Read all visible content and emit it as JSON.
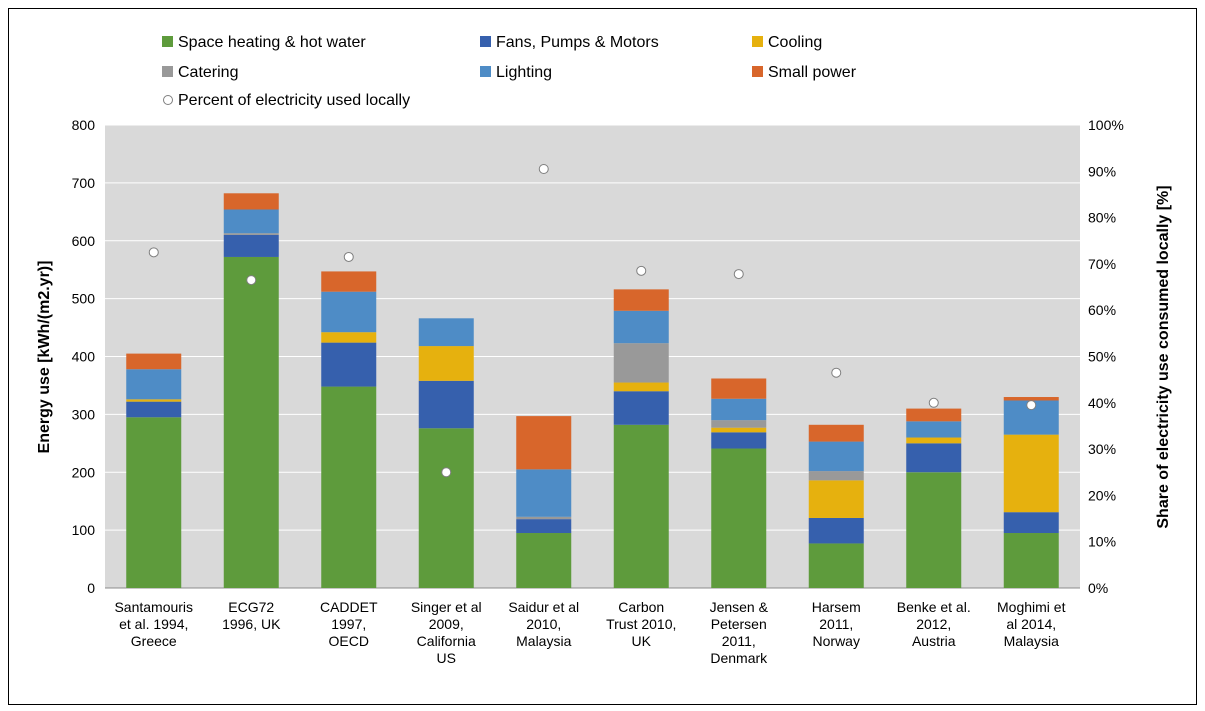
{
  "chart_data": {
    "type": "bar",
    "stacked": true,
    "categories": [
      [
        "Santamouris",
        "et al. 1994,",
        "Greece"
      ],
      [
        "ECG72",
        "1996, UK"
      ],
      [
        "CADDET",
        "1997,",
        "OECD"
      ],
      [
        "Singer et al",
        "2009,",
        "California",
        "US"
      ],
      [
        "Saidur et al",
        "2010,",
        "Malaysia"
      ],
      [
        "Carbon",
        "Trust 2010,",
        "UK"
      ],
      [
        "Jensen &",
        "Petersen",
        "2011,",
        "Denmark"
      ],
      [
        "Harsem",
        "2011,",
        "Norway"
      ],
      [
        "Benke et al.",
        "2012,",
        "Austria"
      ],
      [
        "Moghimi et",
        "al 2014,",
        "Malaysia"
      ]
    ],
    "series": [
      {
        "name": "Space heating & hot water",
        "color": "#5e9b3c",
        "values": [
          295,
          572,
          348,
          276,
          95,
          282,
          241,
          77,
          200,
          95
        ]
      },
      {
        "name": "Fans, Pumps & Motors",
        "color": "#3660ad",
        "values": [
          27,
          38,
          76,
          82,
          24,
          58,
          28,
          44,
          50,
          36
        ]
      },
      {
        "name": "Cooling",
        "color": "#e6b10e",
        "values": [
          4,
          0,
          18,
          60,
          0,
          15,
          8,
          65,
          10,
          134
        ]
      },
      {
        "name": "Catering",
        "color": "#999999",
        "values": [
          0,
          3,
          0,
          0,
          4,
          68,
          13,
          16,
          0,
          0
        ]
      },
      {
        "name": "Lighting",
        "color": "#4e8cc6",
        "values": [
          52,
          41,
          70,
          48,
          82,
          56,
          37,
          51,
          28,
          59
        ]
      },
      {
        "name": "Small power",
        "color": "#d8662b",
        "values": [
          27,
          28,
          35,
          0,
          92,
          37,
          35,
          29,
          22,
          6
        ]
      }
    ],
    "scatter": {
      "name": "Percent of electricity used locally",
      "values": [
        72.5,
        66.5,
        71.5,
        25,
        90.5,
        68.5,
        67.8,
        46.5,
        40,
        39.5
      ]
    },
    "ylabel": "Energy use [kWh/(m2.yr)]",
    "ylim": [
      0,
      800
    ],
    "yticks": [
      0,
      100,
      200,
      300,
      400,
      500,
      600,
      700,
      800
    ],
    "y2label": "Share of electricity use consumed locally [%]",
    "y2lim": [
      0,
      100
    ],
    "y2ticks": [
      "0%",
      "10%",
      "20%",
      "30%",
      "40%",
      "50%",
      "60%",
      "70%",
      "80%",
      "90%",
      "100%"
    ],
    "grid": true,
    "legend_position": "top"
  }
}
